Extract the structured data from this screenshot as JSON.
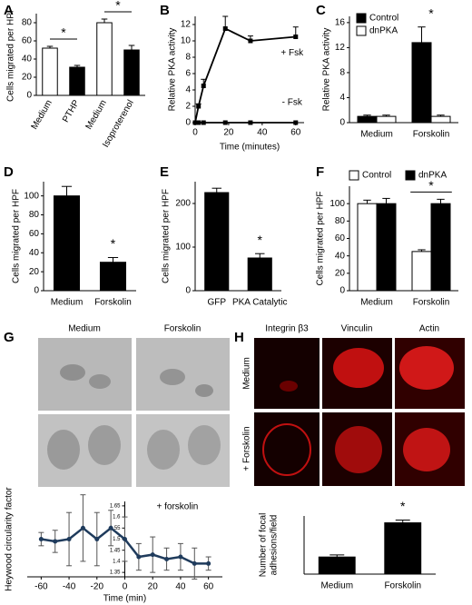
{
  "chart_data": [
    {
      "panel": "A",
      "type": "bar",
      "ylabel": "Cells migrated per HPF",
      "categories": [
        "Medium",
        "PTHP",
        "Medium",
        "Isoproterenol"
      ],
      "values": [
        52,
        31,
        80,
        50
      ],
      "errors": [
        2,
        2,
        4,
        5
      ],
      "colors": [
        "#ffffff",
        "#000000",
        "#ffffff",
        "#000000"
      ],
      "ylim": [
        0,
        90
      ],
      "yticks": [
        0,
        20,
        40,
        60,
        80
      ],
      "annotations": [
        "*",
        "*"
      ],
      "label_rotate": true
    },
    {
      "panel": "B",
      "type": "line",
      "ylabel": "Relative PKA activity",
      "xlabel": "Time (minutes)",
      "x": [
        0,
        2,
        5,
        18,
        33,
        60
      ],
      "series": [
        {
          "name": "+ Fsk",
          "color": "#000000",
          "values": [
            0,
            2,
            4.5,
            11.5,
            10,
            10.5
          ],
          "errors": [
            0,
            0.3,
            0.8,
            1.5,
            0.6,
            1.2
          ]
        },
        {
          "name": "- Fsk",
          "color": "#000000",
          "values": [
            0,
            0,
            0,
            0,
            0,
            0
          ]
        }
      ],
      "xlim": [
        0,
        65
      ],
      "xticks": [
        0,
        20,
        40,
        60
      ],
      "ylim": [
        0,
        13
      ],
      "yticks": [
        0,
        2,
        4,
        6,
        8,
        10,
        12
      ],
      "error_direction": "up",
      "marker": "square"
    },
    {
      "panel": "C",
      "type": "bar",
      "ylabel": "Relative PKA activity",
      "categories": [
        "Medium",
        "Forskolin"
      ],
      "series": [
        {
          "name": "Control",
          "color": "#000000",
          "values": [
            1,
            12.8
          ],
          "errors": [
            0.2,
            2.5
          ]
        },
        {
          "name": "dnPKA",
          "color": "#ffffff",
          "values": [
            1,
            1
          ],
          "errors": [
            0.2,
            0.2
          ]
        }
      ],
      "ylim": [
        0,
        17
      ],
      "yticks": [
        0,
        4,
        8,
        12,
        16
      ],
      "legend": "top-left",
      "annotations": [
        "*"
      ]
    },
    {
      "panel": "D",
      "type": "bar",
      "ylabel": "Cells migrated per HPF",
      "categories": [
        "Medium",
        "Forskolin"
      ],
      "values": [
        100,
        30
      ],
      "errors": [
        10,
        5
      ],
      "colors": [
        "#000000",
        "#000000"
      ],
      "ylim": [
        0,
        115
      ],
      "yticks": [
        0,
        20,
        40,
        60,
        80,
        100
      ],
      "annotations": [
        "*"
      ]
    },
    {
      "panel": "E",
      "type": "bar",
      "ylabel": "Cells migrated per HPF",
      "categories": [
        "GFP",
        "PKA Catalytic"
      ],
      "values": [
        225,
        75
      ],
      "errors": [
        10,
        10
      ],
      "colors": [
        "#000000",
        "#000000"
      ],
      "ylim": [
        0,
        250
      ],
      "yticks": [
        0,
        100,
        200
      ],
      "annotations": [
        "*"
      ]
    },
    {
      "panel": "F",
      "type": "bar",
      "ylabel": "Cells migrated per HPF",
      "categories": [
        "Medium",
        "Forskolin"
      ],
      "series": [
        {
          "name": "Control",
          "color": "#ffffff",
          "values": [
            100,
            45
          ],
          "errors": [
            4,
            2
          ]
        },
        {
          "name": "dnPKA",
          "color": "#000000",
          "values": [
            100,
            100
          ],
          "errors": [
            6,
            5
          ]
        }
      ],
      "ylim": [
        0,
        120
      ],
      "yticks": [
        0,
        20,
        40,
        60,
        80,
        100
      ],
      "legend": "top",
      "annotations": [
        "*"
      ]
    },
    {
      "panel": "G",
      "type": "line",
      "ylabel": "Heywood circularity factor",
      "xlabel": "Time (min)",
      "x": [
        -60,
        -50,
        -40,
        -30,
        -20,
        -10,
        0,
        10,
        20,
        30,
        40,
        50,
        60
      ],
      "series": [
        {
          "color": "#1f3b5c",
          "values": [
            1.5,
            1.49,
            1.5,
            1.55,
            1.5,
            1.55,
            1.5,
            1.42,
            1.43,
            1.41,
            1.42,
            1.39,
            1.39
          ],
          "errors": [
            0.03,
            0.05,
            0.12,
            0.15,
            0.12,
            0.08,
            0.1,
            0.06,
            0.08,
            0.05,
            0.06,
            0.07,
            0.03
          ]
        }
      ],
      "xlim": [
        -70,
        70
      ],
      "xticks": [
        -60,
        -40,
        -20,
        0,
        20,
        40,
        60
      ],
      "ylim": [
        1.33,
        1.67
      ],
      "yticks": [
        1.35,
        1.4,
        1.45,
        1.5,
        1.55,
        1.6,
        1.65
      ],
      "error_direction": "both",
      "marker": "circle",
      "annotations": [
        "+ forskolin"
      ]
    },
    {
      "panel": "H",
      "type": "bar",
      "ylabel": [
        "Number of focal",
        "adhesions/field"
      ],
      "categories": [
        "Medium",
        "Forskolin"
      ],
      "values": [
        25,
        75
      ],
      "errors": [
        3,
        4
      ],
      "colors": [
        "#000000",
        "#000000"
      ],
      "ylim": [
        0,
        85
      ],
      "annotations": [
        "*"
      ]
    }
  ],
  "images": {
    "G": {
      "columns": [
        "Medium",
        "Forskolin"
      ]
    },
    "H": {
      "columns": [
        "Integrin β3",
        "Vinculin",
        "Actin"
      ],
      "rows": [
        "Medium",
        "+ Forskolin"
      ]
    }
  }
}
